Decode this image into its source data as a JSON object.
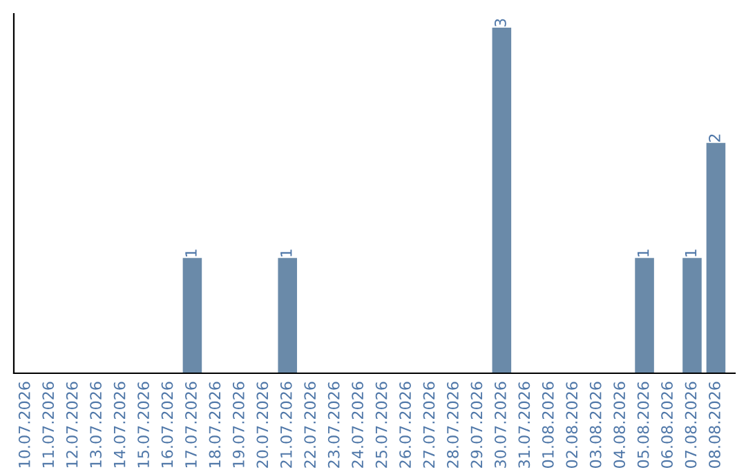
{
  "chart_data": {
    "type": "bar",
    "categories": [
      "10.07.2026",
      "11.07.2026",
      "12.07.2026",
      "13.07.2026",
      "14.07.2026",
      "15.07.2026",
      "16.07.2026",
      "17.07.2026",
      "18.07.2026",
      "19.07.2026",
      "20.07.2026",
      "21.07.2026",
      "22.07.2026",
      "23.07.2026",
      "24.07.2026",
      "25.07.2026",
      "26.07.2026",
      "27.07.2026",
      "28.07.2026",
      "29.07.2026",
      "30.07.2026",
      "31.07.2026",
      "01.08.2026",
      "02.08.2026",
      "03.08.2026",
      "04.08.2026",
      "05.08.2026",
      "06.08.2026",
      "07.08.2026",
      "08.08.2026"
    ],
    "values": [
      0,
      0,
      0,
      0,
      0,
      0,
      0,
      1,
      0,
      0,
      0,
      1,
      0,
      0,
      0,
      0,
      0,
      0,
      0,
      0,
      3,
      0,
      0,
      0,
      0,
      0,
      1,
      0,
      1,
      2
    ],
    "value_labels": [
      null,
      null,
      null,
      null,
      null,
      null,
      null,
      "1",
      null,
      null,
      null,
      "1",
      null,
      null,
      null,
      null,
      null,
      null,
      null,
      null,
      "3",
      null,
      null,
      null,
      null,
      null,
      "1",
      null,
      "1",
      "2"
    ],
    "color": "#6a8aa9",
    "tick_labels": "x"
  }
}
